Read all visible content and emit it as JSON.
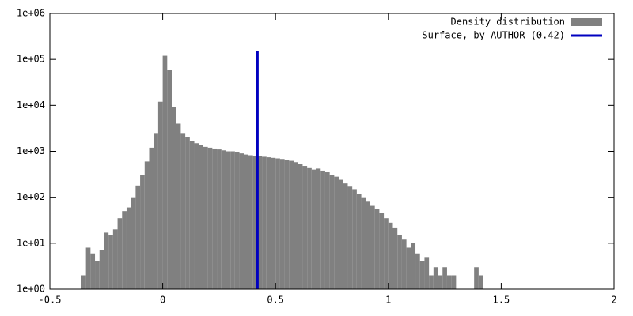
{
  "chart_data": {
    "type": "histogram",
    "log_y": true,
    "xlim": [
      -0.5,
      2
    ],
    "ylim": [
      1,
      1000000
    ],
    "xticks": [
      -0.5,
      0,
      0.5,
      1,
      1.5,
      2
    ],
    "yticks": [
      {
        "value": 1,
        "label": "1e+00"
      },
      {
        "value": 10,
        "label": "1e+01"
      },
      {
        "value": 100,
        "label": "1e+02"
      },
      {
        "value": 1000,
        "label": "1e+03"
      },
      {
        "value": 10000,
        "label": "1e+04"
      },
      {
        "value": 100000,
        "label": "1e+05"
      },
      {
        "value": 1000000,
        "label": "1e+06"
      }
    ],
    "legend": "top-right",
    "series": [
      {
        "name": "Density distribution",
        "color": "#808080",
        "bins": [
          -0.36,
          -0.34,
          -0.32,
          -0.3,
          -0.28,
          -0.26,
          -0.24,
          -0.22,
          -0.2,
          -0.18,
          -0.16,
          -0.14,
          -0.12,
          -0.1,
          -0.08,
          -0.06,
          -0.04,
          -0.02,
          0.0,
          0.02,
          0.04,
          0.06,
          0.08,
          0.1,
          0.12,
          0.14,
          0.16,
          0.18,
          0.2,
          0.22,
          0.24,
          0.26,
          0.28,
          0.3,
          0.32,
          0.34,
          0.36,
          0.38,
          0.4,
          0.42,
          0.44,
          0.46,
          0.48,
          0.5,
          0.52,
          0.54,
          0.56,
          0.58,
          0.6,
          0.62,
          0.64,
          0.66,
          0.68,
          0.7,
          0.72,
          0.74,
          0.76,
          0.78,
          0.8,
          0.82,
          0.84,
          0.86,
          0.88,
          0.9,
          0.92,
          0.94,
          0.96,
          0.98,
          1.0,
          1.02,
          1.04,
          1.06,
          1.08,
          1.1,
          1.12,
          1.14,
          1.16,
          1.18,
          1.2,
          1.22,
          1.24,
          1.26,
          1.28,
          1.3,
          1.32,
          1.34,
          1.36,
          1.38,
          1.4,
          1.42,
          1.44
        ],
        "values": [
          2,
          8,
          6,
          4,
          7,
          17,
          15,
          20,
          35,
          50,
          60,
          100,
          180,
          300,
          600,
          1200,
          2500,
          12000,
          120000,
          60000,
          9000,
          4000,
          2500,
          2000,
          1700,
          1500,
          1350,
          1250,
          1200,
          1150,
          1100,
          1050,
          1000,
          1000,
          950,
          900,
          850,
          820,
          800,
          780,
          760,
          740,
          720,
          700,
          680,
          650,
          620,
          580,
          540,
          480,
          430,
          400,
          420,
          380,
          350,
          300,
          280,
          240,
          200,
          170,
          150,
          120,
          100,
          80,
          65,
          55,
          45,
          35,
          28,
          22,
          15,
          12,
          8,
          10,
          6,
          4,
          5,
          2,
          3,
          2,
          3,
          2,
          2,
          1,
          0,
          0,
          1,
          3,
          2,
          1
        ]
      },
      {
        "name": "Surface, by AUTHOR (0.42)",
        "color": "#0000c0",
        "type": "line",
        "x": [
          0.42,
          0.42
        ],
        "values": [
          1,
          150000
        ]
      }
    ]
  }
}
